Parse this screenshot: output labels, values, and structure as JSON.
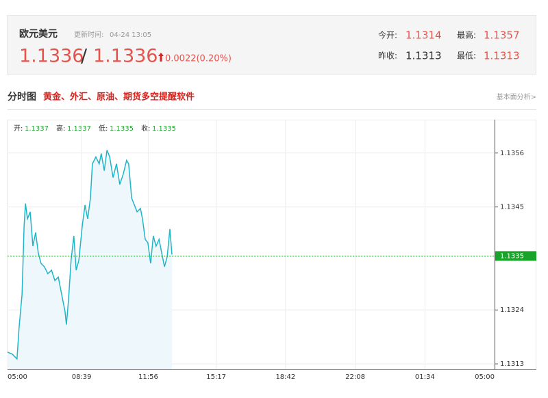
{
  "header": {
    "name": "欧元美元",
    "update_label": "更新时间:",
    "update_time": "04-24 13:05",
    "price": "1.1336",
    "separator": "/",
    "price2": "1.1336",
    "change": "0.0022(0.20%)",
    "stats": [
      {
        "label": "今开:",
        "value": "1.1314"
      },
      {
        "label": "最高:",
        "value": "1.1357"
      },
      {
        "label": "昨收:",
        "value": "1.1313"
      },
      {
        "label": "最低:",
        "value": "1.1313"
      }
    ]
  },
  "section": {
    "title": "分时图",
    "promo": "黄金、外汇、原油、期货多空提醒软件",
    "link": "基本面分析>"
  },
  "chart_data": {
    "type": "line",
    "color": "#1fb5c9",
    "area_color": "#eef8fc",
    "ohlc": [
      {
        "label": "开:",
        "value": "1.1337"
      },
      {
        "label": "高:",
        "value": "1.1337"
      },
      {
        "label": "低:",
        "value": "1.1335"
      },
      {
        "label": "收:",
        "value": "1.1335"
      }
    ],
    "x": [
      0,
      14,
      28,
      34,
      43,
      49,
      53,
      59,
      67,
      75,
      83,
      91,
      99,
      109,
      119,
      130,
      140,
      150,
      160,
      170,
      174,
      180,
      188,
      196,
      203,
      211,
      221,
      229,
      237,
      245,
      251,
      261,
      271,
      277,
      286,
      294,
      302,
      312,
      322,
      332,
      342,
      352,
      358,
      367,
      375,
      383,
      393,
      399,
      407,
      415,
      423,
      431,
      439,
      448,
      456,
      464,
      472,
      480,
      486
    ],
    "values": [
      1.13154,
      1.1315,
      1.1314,
      1.13203,
      1.13272,
      1.13412,
      1.13457,
      1.13426,
      1.1344,
      1.1337,
      1.13398,
      1.13356,
      1.13335,
      1.13328,
      1.13314,
      1.13321,
      1.133,
      1.13307,
      1.13272,
      1.13237,
      1.1321,
      1.13258,
      1.13342,
      1.13391,
      1.13321,
      1.13342,
      1.13412,
      1.13454,
      1.13426,
      1.13468,
      1.13538,
      1.13552,
      1.13538,
      1.13559,
      1.13524,
      1.13566,
      1.13552,
      1.1351,
      1.13538,
      1.13496,
      1.13517,
      1.13545,
      1.13538,
      1.13468,
      1.13454,
      1.1344,
      1.13447,
      1.13426,
      1.13384,
      1.13377,
      1.13335,
      1.13391,
      1.1337,
      1.13384,
      1.13356,
      1.13328,
      1.13349,
      1.13405,
      1.13353
    ],
    "xlim": [
      0,
      1440
    ],
    "xticks": [
      {
        "value": 0,
        "label": "05:00"
      },
      {
        "value": 219,
        "label": "08:39"
      },
      {
        "value": 416,
        "label": "11:56"
      },
      {
        "value": 617,
        "label": "15:17"
      },
      {
        "value": 822,
        "label": "18:42"
      },
      {
        "value": 1028,
        "label": "22:08"
      },
      {
        "value": 1234,
        "label": "01:34"
      },
      {
        "value": 1440,
        "label": "05:00"
      }
    ],
    "ylim": [
      1.13119,
      1.13628
    ],
    "yticks": [
      1.1313,
      1.1324,
      1.1335,
      1.1345,
      1.1356
    ],
    "reference_line": 1.1335,
    "reference_color": "#1aa32a",
    "grid": true
  }
}
